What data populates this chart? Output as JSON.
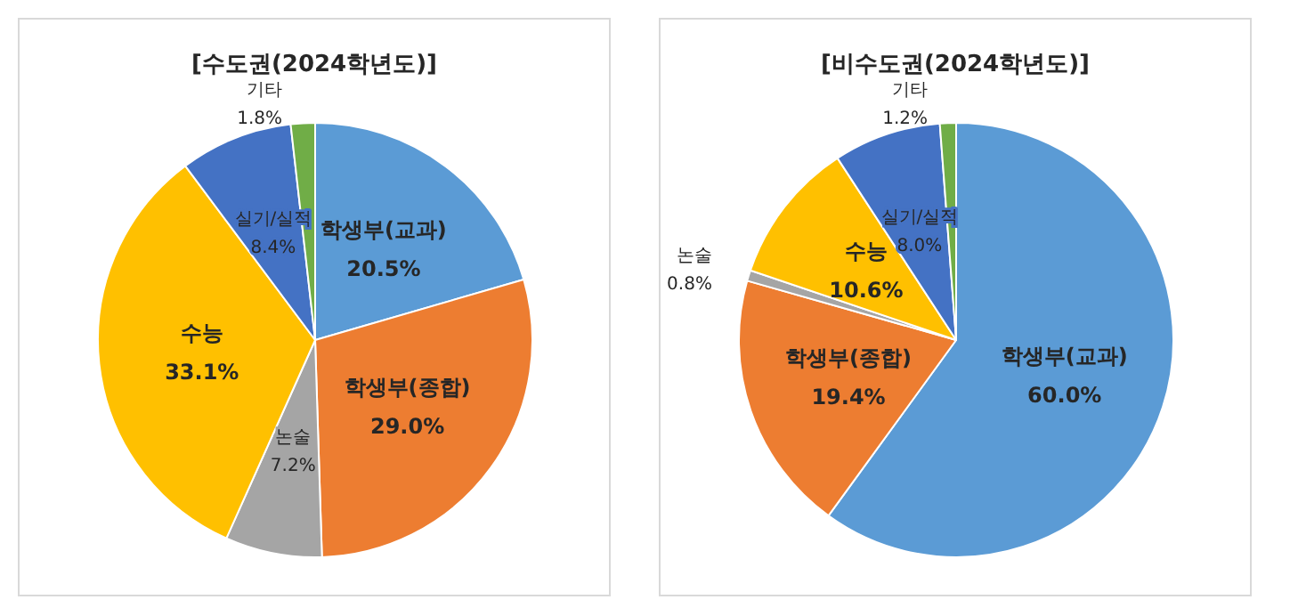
{
  "chart_data": [
    {
      "type": "pie",
      "title": "[수도권(2024학년도)]",
      "categories": [
        "학생부(교과)",
        "학생부(종합)",
        "논술",
        "수능",
        "실기/실적",
        "기타"
      ],
      "values": [
        20.5,
        29.0,
        7.2,
        33.1,
        8.4,
        1.8
      ],
      "value_labels": [
        "20.5%",
        "29.0%",
        "7.2%",
        "33.1%",
        "8.4%",
        "1.8%"
      ],
      "colors": [
        "#5b9bd5",
        "#ed7d31",
        "#a5a5a5",
        "#ffc000",
        "#4472c4",
        "#70ad47"
      ],
      "legend": false
    },
    {
      "type": "pie",
      "title": "[비수도권(2024학년도)]",
      "categories": [
        "학생부(교과)",
        "학생부(종합)",
        "논술",
        "수능",
        "실기/실적",
        "기타"
      ],
      "values": [
        60.0,
        19.4,
        0.8,
        10.6,
        8.0,
        1.2
      ],
      "value_labels": [
        "60.0%",
        "19.4%",
        "0.8%",
        "10.6%",
        "8.0%",
        "1.2%"
      ],
      "colors": [
        "#5b9bd5",
        "#ed7d31",
        "#a5a5a5",
        "#ffc000",
        "#4472c4",
        "#70ad47"
      ],
      "legend": false
    }
  ]
}
